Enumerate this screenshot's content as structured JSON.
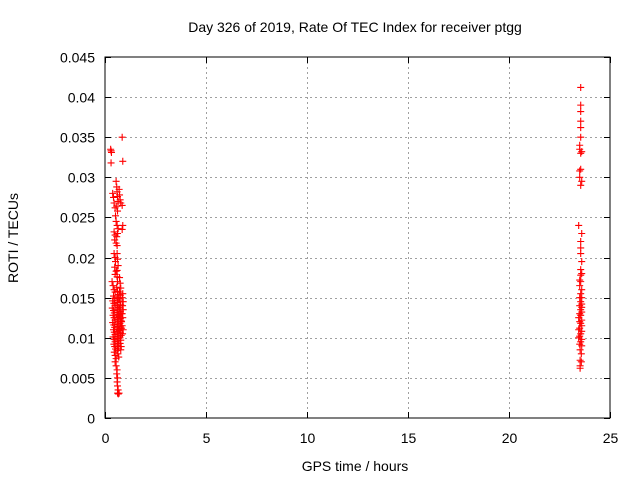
{
  "chart_data": {
    "type": "scatter",
    "title": "Day 326 of 2019, Rate Of TEC Index for receiver ptgg",
    "xlabel": "GPS time / hours",
    "ylabel": "ROTI / TECUs",
    "xlim": [
      0,
      25
    ],
    "ylim": [
      0,
      0.045
    ],
    "xticks": [
      0,
      5,
      10,
      15,
      20,
      25
    ],
    "xtick_labels": [
      "0",
      "5",
      "10",
      "15",
      "20",
      "25"
    ],
    "yticks": [
      0,
      0.005,
      0.01,
      0.015,
      0.02,
      0.025,
      0.03,
      0.035,
      0.04,
      0.045
    ],
    "ytick_labels": [
      "0",
      "0.005",
      "0.01",
      "0.015",
      "0.02",
      "0.025",
      "0.03",
      "0.035",
      "0.04",
      "0.045"
    ],
    "grid": true,
    "marker": "+",
    "color": "#ff0000",
    "series": [
      {
        "name": "ROTI",
        "points": [
          [
            0.28,
            0.0335
          ],
          [
            0.3,
            0.0333
          ],
          [
            0.32,
            0.0331
          ],
          [
            0.3,
            0.0318
          ],
          [
            0.38,
            0.028
          ],
          [
            0.42,
            0.0275
          ],
          [
            0.45,
            0.0268
          ],
          [
            0.5,
            0.0262
          ],
          [
            0.52,
            0.0252
          ],
          [
            0.55,
            0.0245
          ],
          [
            0.45,
            0.0232
          ],
          [
            0.5,
            0.0228
          ],
          [
            0.48,
            0.0222
          ],
          [
            0.55,
            0.0218
          ],
          [
            0.6,
            0.0215
          ],
          [
            0.45,
            0.0205
          ],
          [
            0.5,
            0.02
          ],
          [
            0.52,
            0.0195
          ],
          [
            0.48,
            0.0188
          ],
          [
            0.55,
            0.0183
          ],
          [
            0.5,
            0.0179
          ],
          [
            0.6,
            0.0176
          ],
          [
            0.35,
            0.017
          ],
          [
            0.4,
            0.0165
          ],
          [
            0.45,
            0.016
          ],
          [
            0.5,
            0.0157
          ],
          [
            0.42,
            0.0152
          ],
          [
            0.48,
            0.0149
          ],
          [
            0.38,
            0.0146
          ],
          [
            0.44,
            0.0143
          ],
          [
            0.5,
            0.014
          ],
          [
            0.36,
            0.0137
          ],
          [
            0.42,
            0.0134
          ],
          [
            0.46,
            0.0131
          ],
          [
            0.4,
            0.0128
          ],
          [
            0.45,
            0.0125
          ],
          [
            0.5,
            0.0122
          ],
          [
            0.38,
            0.0119
          ],
          [
            0.44,
            0.0116
          ],
          [
            0.48,
            0.0113
          ],
          [
            0.42,
            0.011
          ],
          [
            0.46,
            0.0107
          ],
          [
            0.5,
            0.0104
          ],
          [
            0.4,
            0.0101
          ],
          [
            0.45,
            0.0098
          ],
          [
            0.5,
            0.0095
          ],
          [
            0.44,
            0.0092
          ],
          [
            0.48,
            0.0089
          ],
          [
            0.52,
            0.0086
          ],
          [
            0.46,
            0.0082
          ],
          [
            0.5,
            0.0078
          ],
          [
            0.55,
            0.0074
          ],
          [
            0.5,
            0.007
          ],
          [
            0.55,
            0.0065
          ],
          [
            0.6,
            0.006
          ],
          [
            0.58,
            0.0055
          ],
          [
            0.62,
            0.005
          ],
          [
            0.6,
            0.0045
          ],
          [
            0.62,
            0.004
          ],
          [
            0.65,
            0.0035
          ],
          [
            0.62,
            0.0031
          ],
          [
            0.66,
            0.003
          ],
          [
            0.7,
            0.0031
          ],
          [
            0.55,
            0.0295
          ],
          [
            0.58,
            0.0288
          ],
          [
            0.6,
            0.0282
          ],
          [
            0.62,
            0.0276
          ],
          [
            0.65,
            0.027
          ],
          [
            0.58,
            0.0264
          ],
          [
            0.62,
            0.0258
          ],
          [
            0.6,
            0.024
          ],
          [
            0.65,
            0.0236
          ],
          [
            0.62,
            0.023
          ],
          [
            0.58,
            0.0226
          ],
          [
            0.6,
            0.0205
          ],
          [
            0.62,
            0.0198
          ],
          [
            0.65,
            0.019
          ],
          [
            0.6,
            0.0184
          ],
          [
            0.62,
            0.017
          ],
          [
            0.58,
            0.0163
          ],
          [
            0.62,
            0.0158
          ],
          [
            0.65,
            0.0154
          ],
          [
            0.6,
            0.015
          ],
          [
            0.64,
            0.0147
          ],
          [
            0.6,
            0.0144
          ],
          [
            0.62,
            0.0141
          ],
          [
            0.66,
            0.0138
          ],
          [
            0.6,
            0.0135
          ],
          [
            0.63,
            0.0132
          ],
          [
            0.67,
            0.0129
          ],
          [
            0.6,
            0.0126
          ],
          [
            0.62,
            0.0123
          ],
          [
            0.66,
            0.012
          ],
          [
            0.6,
            0.0117
          ],
          [
            0.64,
            0.0114
          ],
          [
            0.68,
            0.0111
          ],
          [
            0.6,
            0.0108
          ],
          [
            0.63,
            0.0105
          ],
          [
            0.66,
            0.0102
          ],
          [
            0.6,
            0.0099
          ],
          [
            0.64,
            0.0096
          ],
          [
            0.68,
            0.0093
          ],
          [
            0.62,
            0.009
          ],
          [
            0.66,
            0.0087
          ],
          [
            0.6,
            0.0084
          ],
          [
            0.64,
            0.008
          ],
          [
            0.68,
            0.0076
          ],
          [
            0.7,
            0.0285
          ],
          [
            0.72,
            0.0278
          ],
          [
            0.75,
            0.0272
          ],
          [
            0.78,
            0.0268
          ],
          [
            0.72,
            0.0175
          ],
          [
            0.75,
            0.0168
          ],
          [
            0.78,
            0.0162
          ],
          [
            0.72,
            0.0157
          ],
          [
            0.76,
            0.0153
          ],
          [
            0.7,
            0.0149
          ],
          [
            0.74,
            0.0145
          ],
          [
            0.78,
            0.0141
          ],
          [
            0.72,
            0.0137
          ],
          [
            0.76,
            0.0133
          ],
          [
            0.8,
            0.013
          ],
          [
            0.72,
            0.0127
          ],
          [
            0.76,
            0.0124
          ],
          [
            0.8,
            0.0121
          ],
          [
            0.74,
            0.0118
          ],
          [
            0.78,
            0.0115
          ],
          [
            0.82,
            0.0112
          ],
          [
            0.72,
            0.0109
          ],
          [
            0.76,
            0.0106
          ],
          [
            0.8,
            0.0103
          ],
          [
            0.74,
            0.01
          ],
          [
            0.78,
            0.0097
          ],
          [
            0.75,
            0.0093
          ],
          [
            0.8,
            0.0089
          ],
          [
            0.78,
            0.0085
          ],
          [
            0.82,
            0.012
          ],
          [
            0.85,
            0.0115
          ],
          [
            0.85,
            0.035
          ],
          [
            0.88,
            0.032
          ],
          [
            0.85,
            0.0265
          ],
          [
            0.88,
            0.024
          ],
          [
            0.85,
            0.0235
          ],
          [
            0.88,
            0.0155
          ],
          [
            0.85,
            0.015
          ],
          [
            0.9,
            0.0145
          ],
          [
            0.87,
            0.014
          ],
          [
            0.9,
            0.0135
          ],
          [
            0.85,
            0.013
          ],
          [
            0.88,
            0.0125
          ],
          [
            0.9,
            0.011
          ],
          [
            0.87,
            0.0105
          ],
          [
            23.45,
            0.024
          ],
          [
            23.45,
            0.0125
          ],
          [
            23.45,
            0.011
          ],
          [
            23.45,
            0.01
          ],
          [
            23.5,
            0.034
          ],
          [
            23.5,
            0.0335
          ],
          [
            23.5,
            0.0308
          ],
          [
            23.5,
            0.03
          ],
          [
            23.5,
            0.0172
          ],
          [
            23.5,
            0.0165
          ],
          [
            23.5,
            0.015
          ],
          [
            23.5,
            0.014
          ],
          [
            23.5,
            0.013
          ],
          [
            23.5,
            0.012
          ],
          [
            23.5,
            0.0112
          ],
          [
            23.5,
            0.0102
          ],
          [
            23.5,
            0.0092
          ],
          [
            23.52,
            0.0085
          ],
          [
            23.52,
            0.0072
          ],
          [
            23.52,
            0.0065
          ],
          [
            23.52,
            0.0062
          ],
          [
            23.55,
            0.0412
          ],
          [
            23.55,
            0.039
          ],
          [
            23.55,
            0.0382
          ],
          [
            23.55,
            0.037
          ],
          [
            23.55,
            0.0362
          ],
          [
            23.55,
            0.035
          ],
          [
            23.55,
            0.033
          ],
          [
            23.55,
            0.031
          ],
          [
            23.55,
            0.029
          ],
          [
            23.55,
            0.022
          ],
          [
            23.55,
            0.0212
          ],
          [
            23.55,
            0.0205
          ],
          [
            23.55,
            0.0185
          ],
          [
            23.55,
            0.0178
          ],
          [
            23.55,
            0.017
          ],
          [
            23.55,
            0.0155
          ],
          [
            23.55,
            0.0145
          ],
          [
            23.55,
            0.0135
          ],
          [
            23.55,
            0.0128
          ],
          [
            23.55,
            0.0118
          ],
          [
            23.55,
            0.0105
          ],
          [
            23.55,
            0.0095
          ],
          [
            23.58,
            0.008
          ],
          [
            23.58,
            0.007
          ],
          [
            23.6,
            0.0332
          ],
          [
            23.6,
            0.0295
          ],
          [
            23.6,
            0.023
          ],
          [
            23.6,
            0.0195
          ],
          [
            23.6,
            0.018
          ],
          [
            23.6,
            0.016
          ],
          [
            23.6,
            0.015
          ],
          [
            23.6,
            0.0142
          ],
          [
            23.6,
            0.0138
          ],
          [
            23.6,
            0.0132
          ],
          [
            23.6,
            0.0122
          ],
          [
            23.6,
            0.0115
          ],
          [
            23.6,
            0.0108
          ],
          [
            23.6,
            0.0098
          ],
          [
            23.6,
            0.009
          ]
        ]
      }
    ]
  }
}
